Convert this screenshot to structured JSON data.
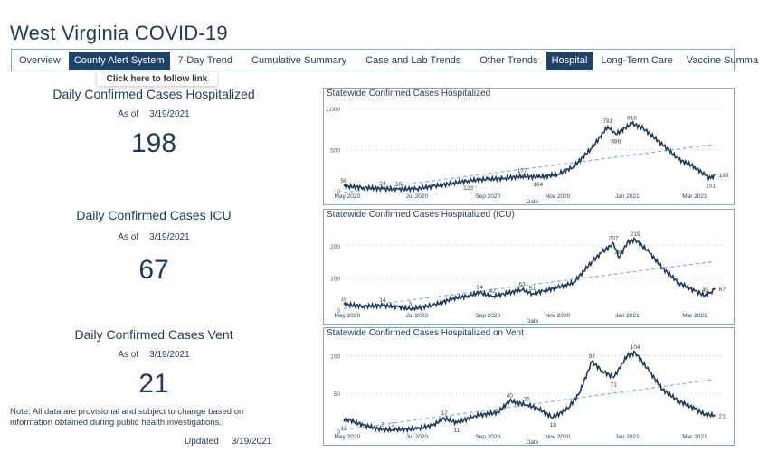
{
  "title": "West Virginia COVID-19",
  "tabs": [
    {
      "label": "Overview",
      "active": false
    },
    {
      "label": "County Alert System",
      "active": false,
      "hovered": true
    },
    {
      "label": "7-Day Trend",
      "active": false
    },
    {
      "label": "Cumulative Summary",
      "active": false
    },
    {
      "label": "Case and Lab Trends",
      "active": false
    },
    {
      "label": "Other Trends",
      "active": false
    },
    {
      "label": "Hospital",
      "active": true
    },
    {
      "label": "Long-Term Care",
      "active": false
    },
    {
      "label": "Vaccine Summary",
      "active": false
    }
  ],
  "tooltip": "Click here to follow link",
  "kpis": [
    {
      "title": "Daily Confirmed Cases Hospitalized",
      "asof_label": "As of",
      "asof": "3/19/2021",
      "value": "198"
    },
    {
      "title": "Daily Confirmed Cases ICU",
      "asof_label": "As of",
      "asof": "3/19/2021",
      "value": "67"
    },
    {
      "title": "Daily Confirmed Cases Vent",
      "asof_label": "As of",
      "asof": "3/19/2021",
      "value": "21"
    }
  ],
  "note": "Note: All data are provisional and subject to change based on information obtained during public health investigations.",
  "updated_label": "Updated",
  "updated": "3/19/2021",
  "colors": {
    "line": "#1f3a5c",
    "trend": "#7fb0e8",
    "active_tab": "#1f4268"
  },
  "chart_data": [
    {
      "type": "line",
      "title": "Statewide Confirmed Cases Hospitalized",
      "xlabel": "Date",
      "ylim": [
        0,
        1000
      ],
      "yticks": [
        "0",
        "500",
        "1,000"
      ],
      "ytick_values": [
        0,
        500,
        1000
      ],
      "xticks": [
        "May 2020",
        "Jul 2020",
        "Sep 2020",
        "Nov 2020",
        "Jan 2021",
        "Mar 2021"
      ],
      "xtick_dates": [
        "2020-05-01",
        "2020-07-01",
        "2020-09-01",
        "2020-11-01",
        "2021-01-01",
        "2021-03-01"
      ],
      "xrange": [
        "2020-04-28",
        "2021-03-24"
      ],
      "x": [
        "2020-04-28",
        "2020-05-15",
        "2020-06-01",
        "2020-06-15",
        "2020-07-01",
        "2020-07-15",
        "2020-08-01",
        "2020-08-15",
        "2020-09-01",
        "2020-09-15",
        "2020-10-01",
        "2020-10-15",
        "2020-11-01",
        "2020-11-15",
        "2020-12-01",
        "2020-12-15",
        "2020-12-22",
        "2021-01-05",
        "2021-01-15",
        "2021-02-01",
        "2021-02-15",
        "2021-03-01",
        "2021-03-10",
        "2021-03-15",
        "2021-03-19"
      ],
      "values": [
        56,
        40,
        24,
        18,
        25,
        55,
        90,
        123,
        140,
        150,
        177,
        164,
        200,
        290,
        520,
        781,
        686,
        818,
        760,
        560,
        380,
        290,
        190,
        151,
        198
      ],
      "trend": [
        -20,
        560
      ],
      "labels": [
        {
          "date": "2020-04-28",
          "value": 56,
          "text": "56"
        },
        {
          "date": "2020-06-01",
          "value": 24,
          "text": "24"
        },
        {
          "date": "2020-06-15",
          "value": 18,
          "text": "18"
        },
        {
          "date": "2020-08-15",
          "value": 123,
          "text": "123",
          "below": true
        },
        {
          "date": "2020-10-01",
          "value": 177,
          "text": "177"
        },
        {
          "date": "2020-10-15",
          "value": 164,
          "text": "164",
          "below": true
        },
        {
          "date": "2020-12-15",
          "value": 781,
          "text": "781"
        },
        {
          "date": "2020-12-22",
          "value": 686,
          "text": "686",
          "below": true
        },
        {
          "date": "2021-01-05",
          "value": 818,
          "text": "818"
        },
        {
          "date": "2021-03-15",
          "value": 151,
          "text": "151",
          "below": true
        },
        {
          "date": "2021-03-19",
          "value": 198,
          "text": "198",
          "below": true
        }
      ]
    },
    {
      "type": "line",
      "title": "Statewide Confirmed Cases Hospitalized (ICU)",
      "xlabel": "Date",
      "ylim": [
        0,
        250
      ],
      "yticks": [
        "0",
        "100",
        "200"
      ],
      "ytick_values": [
        0,
        100,
        200
      ],
      "xticks": [
        "May 2020",
        "Jul 2020",
        "Sep 2020",
        "Nov 2020",
        "Jan 2021",
        "Mar 2021"
      ],
      "xtick_dates": [
        "2020-05-01",
        "2020-07-01",
        "2020-09-01",
        "2020-11-01",
        "2021-01-01",
        "2021-03-01"
      ],
      "xrange": [
        "2020-04-28",
        "2021-03-24"
      ],
      "x": [
        "2020-04-28",
        "2020-05-15",
        "2020-06-01",
        "2020-06-15",
        "2020-06-25",
        "2020-07-15",
        "2020-08-01",
        "2020-08-15",
        "2020-08-25",
        "2020-09-05",
        "2020-09-15",
        "2020-10-01",
        "2020-10-10",
        "2020-10-20",
        "2020-11-01",
        "2020-11-15",
        "2020-12-01",
        "2020-12-10",
        "2020-12-20",
        "2020-12-25",
        "2021-01-01",
        "2021-01-08",
        "2021-01-20",
        "2021-02-01",
        "2021-02-15",
        "2021-03-01",
        "2021-03-10",
        "2021-03-15",
        "2021-03-19"
      ],
      "values": [
        18,
        12,
        14,
        10,
        3,
        15,
        35,
        45,
        54,
        42,
        50,
        63,
        51,
        60,
        70,
        85,
        150,
        180,
        207,
        163,
        210,
        219,
        180,
        130,
        85,
        60,
        45,
        55,
        67
      ],
      "trend": [
        5,
        150
      ],
      "labels": [
        {
          "date": "2020-04-28",
          "value": 18,
          "text": "18"
        },
        {
          "date": "2020-06-01",
          "value": 14,
          "text": "14"
        },
        {
          "date": "2020-06-25",
          "value": 3,
          "text": "3"
        },
        {
          "date": "2020-08-25",
          "value": 54,
          "text": "54"
        },
        {
          "date": "2020-09-05",
          "value": 42,
          "text": "42"
        },
        {
          "date": "2020-10-01",
          "value": 63,
          "text": "63"
        },
        {
          "date": "2020-10-10",
          "value": 51,
          "text": "51"
        },
        {
          "date": "2020-12-20",
          "value": 207,
          "text": "207"
        },
        {
          "date": "2020-12-25",
          "value": 163,
          "text": "163"
        },
        {
          "date": "2021-01-08",
          "value": 219,
          "text": "219"
        },
        {
          "date": "2021-03-10",
          "value": 45,
          "text": "45"
        },
        {
          "date": "2021-03-19",
          "value": 67,
          "text": "67"
        }
      ]
    },
    {
      "type": "line",
      "title": "Statewide Confirmed Cases Hospitalized on Vent",
      "xlabel": "Date",
      "ylim": [
        0,
        110
      ],
      "yticks": [
        "0",
        "50",
        "100"
      ],
      "ytick_values": [
        0,
        50,
        100
      ],
      "xticks": [
        "May 2020",
        "Jul 2020",
        "Sep 2020",
        "Nov 2020",
        "Jan 2021",
        "Mar 2021"
      ],
      "xtick_dates": [
        "2020-05-01",
        "2020-07-01",
        "2020-09-01",
        "2020-11-01",
        "2021-01-01",
        "2021-03-01"
      ],
      "xrange": [
        "2020-04-28",
        "2021-03-24"
      ],
      "x": [
        "2020-04-28",
        "2020-05-01",
        "2020-05-15",
        "2020-06-01",
        "2020-06-10",
        "2020-07-01",
        "2020-07-15",
        "2020-07-25",
        "2020-08-05",
        "2020-08-20",
        "2020-09-10",
        "2020-09-20",
        "2020-10-05",
        "2020-10-15",
        "2020-10-28",
        "2020-11-10",
        "2020-11-20",
        "2020-12-01",
        "2020-12-10",
        "2020-12-20",
        "2021-01-01",
        "2021-01-08",
        "2021-01-20",
        "2021-02-01",
        "2021-02-15",
        "2021-03-01",
        "2021-03-10",
        "2021-03-19"
      ],
      "values": [
        13,
        16,
        8,
        2,
        2,
        3,
        8,
        17,
        11,
        20,
        25,
        40,
        35,
        30,
        18,
        30,
        50,
        92,
        80,
        71,
        100,
        104,
        80,
        55,
        40,
        30,
        22,
        21
      ],
      "trend": [
        2,
        68
      ],
      "labels": [
        {
          "date": "2020-04-28",
          "value": 13,
          "text": "13",
          "below": true
        },
        {
          "date": "2020-06-01",
          "value": 2,
          "text": "2"
        },
        {
          "date": "2020-06-10",
          "value": 2,
          "text": "2"
        },
        {
          "date": "2020-07-25",
          "value": 17,
          "text": "17"
        },
        {
          "date": "2020-08-05",
          "value": 11,
          "text": "11",
          "below": true
        },
        {
          "date": "2020-09-20",
          "value": 40,
          "text": "40"
        },
        {
          "date": "2020-10-05",
          "value": 35,
          "text": "35"
        },
        {
          "date": "2020-10-28",
          "value": 18,
          "text": "18",
          "below": true
        },
        {
          "date": "2020-12-01",
          "value": 92,
          "text": "92"
        },
        {
          "date": "2020-12-20",
          "value": 71,
          "text": "71",
          "below": true
        },
        {
          "date": "2021-01-08",
          "value": 104,
          "text": "104"
        },
        {
          "date": "2021-03-19",
          "value": 21,
          "text": "21",
          "below": true
        }
      ]
    }
  ]
}
